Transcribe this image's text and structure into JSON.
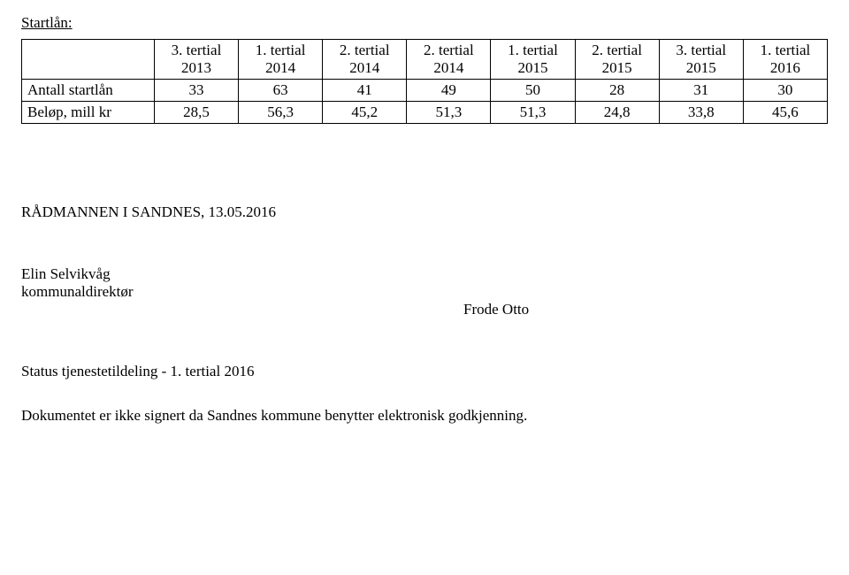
{
  "heading": "Startlån:",
  "table": {
    "cols": [
      {
        "line1": "3. tertial",
        "line2": "2013"
      },
      {
        "line1": "1. tertial",
        "line2": "2014"
      },
      {
        "line1": "2. tertial",
        "line2": "2014"
      },
      {
        "line1": "2. tertial",
        "line2": "2014"
      },
      {
        "line1": "1. tertial",
        "line2": "2015"
      },
      {
        "line1": "2. tertial",
        "line2": "2015"
      },
      {
        "line1": "3. tertial",
        "line2": "2015"
      },
      {
        "line1": "1. tertial",
        "line2": "2016"
      }
    ],
    "rows": [
      {
        "label": "Antall startlån",
        "values": [
          "33",
          "63",
          "41",
          "49",
          "50",
          "28",
          "31",
          "30"
        ]
      },
      {
        "label": "Beløp, mill kr",
        "values": [
          "28,5",
          "56,3",
          "45,2",
          "51,3",
          "51,3",
          "24,8",
          "33,8",
          "45,6"
        ]
      }
    ]
  },
  "section": "RÅDMANNEN I SANDNES, 13.05.2016",
  "sig": {
    "name": "Elin Selvikvåg",
    "title": "kommunaldirektør",
    "right": "Frode Otto"
  },
  "status": "Status tjenestetildeling - 1. tertial 2016",
  "docnote": "Dokumentet er ikke signert da Sandnes kommune benytter elektronisk godkjenning."
}
